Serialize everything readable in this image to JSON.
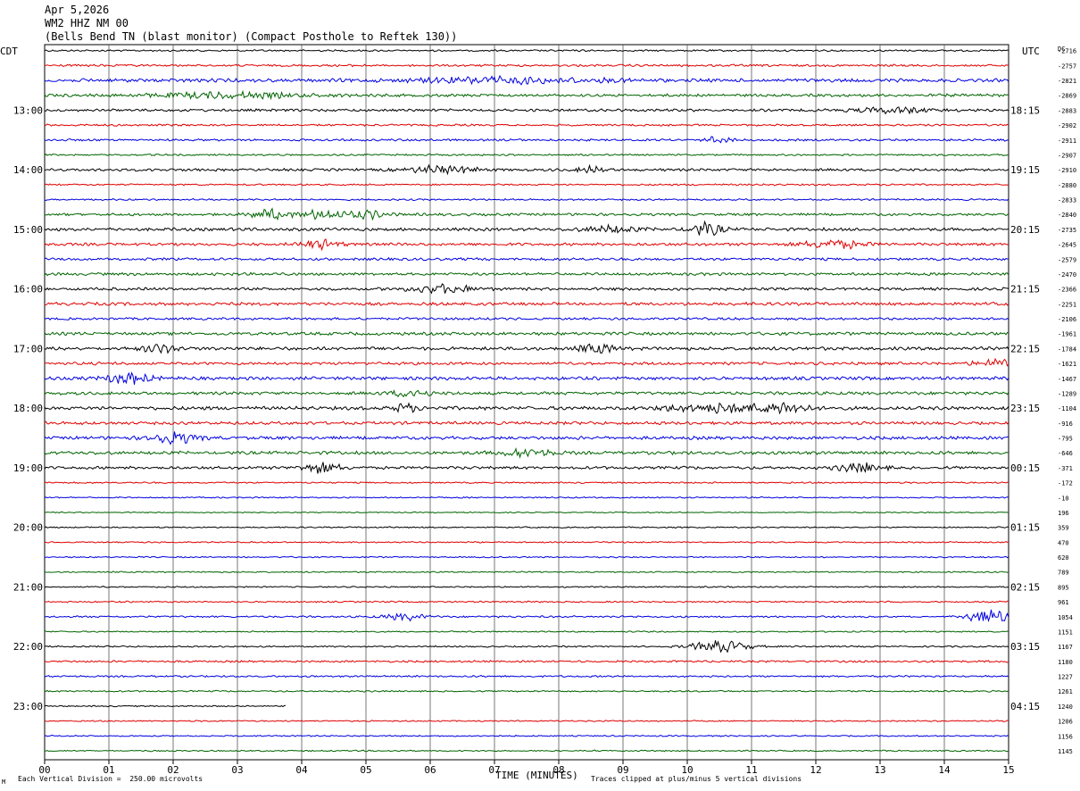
{
  "header": {
    "date": "Apr 5,2026",
    "channel": "WM2 HHZ NM 00",
    "station": "(Bells Bend TN (blast monitor) (Compact Posthole to Reftek 130))"
  },
  "chart_data": {
    "type": "line",
    "title": "",
    "left_axis_label": "CDT",
    "right_axis_label": "UTC",
    "dc_label": "DC",
    "xlabel": "TIME (MINUTES)",
    "x_ticks": [
      "00",
      "01",
      "02",
      "03",
      "04",
      "05",
      "06",
      "07",
      "08",
      "09",
      "10",
      "11",
      "12",
      "13",
      "14",
      "15"
    ],
    "xlim": [
      0,
      15
    ],
    "left_time_labels": [
      "13:00",
      "14:00",
      "15:00",
      "16:00",
      "17:00",
      "18:00",
      "19:00",
      "20:00",
      "21:00",
      "22:00",
      "23:00"
    ],
    "right_time_labels": [
      "18:15",
      "19:15",
      "20:15",
      "21:15",
      "22:15",
      "23:15",
      "00:15",
      "01:15",
      "02:15",
      "03:15",
      "04:15"
    ],
    "dc_offsets": [
      "-2716",
      "-2757",
      "-2821",
      "-2869",
      "-2883",
      "-2902",
      "-2911",
      "-2907",
      "-2910",
      "-2880",
      "-2833",
      "-2840",
      "-2735",
      "-2645",
      "-2579",
      "-2470",
      "-2366",
      "-2251",
      "-2106",
      "-1961",
      "-1784",
      "-1621",
      "-1467",
      "-1289",
      "-1104",
      "-916",
      "-795",
      "-646",
      "-371",
      "-172",
      "-10",
      "196",
      "359",
      "470",
      "620",
      "789",
      "895",
      "961",
      "1054",
      "1151",
      "1167",
      "1180",
      "1227",
      "1261",
      "1240",
      "1206",
      "1156",
      "1145"
    ],
    "trace_colors": [
      "#000000",
      "#e00000",
      "#0000e0",
      "#006400"
    ],
    "trace_count": 48,
    "last_trace_end_minute": 3.75,
    "amplitude": [
      0.8,
      1.0,
      1.6,
      1.3,
      1.2,
      0.9,
      1.0,
      0.8,
      1.2,
      0.8,
      0.8,
      1.2,
      1.4,
      1.3,
      1.2,
      1.3,
      1.3,
      1.4,
      1.1,
      1.4,
      1.5,
      1.3,
      1.5,
      1.4,
      1.6,
      1.4,
      1.5,
      1.5,
      1.3,
      0.7,
      0.6,
      0.5,
      0.6,
      0.6,
      0.6,
      0.6,
      0.6,
      0.7,
      0.8,
      0.6,
      0.7,
      0.9,
      0.8,
      0.7,
      0.6,
      0.6,
      0.6,
      0.6
    ],
    "events": [
      {
        "trace": 2,
        "minute": 7.3,
        "amp": 2.5,
        "width": 1.4
      },
      {
        "trace": 3,
        "minute": 2.9,
        "amp": 2.2,
        "width": 1.2
      },
      {
        "trace": 4,
        "minute": 13.2,
        "amp": 2.2,
        "width": 0.6
      },
      {
        "trace": 6,
        "minute": 10.5,
        "amp": 3.0,
        "width": 0.2
      },
      {
        "trace": 8,
        "minute": 6.2,
        "amp": 3.5,
        "width": 0.5
      },
      {
        "trace": 8,
        "minute": 8.5,
        "amp": 3.0,
        "width": 0.2
      },
      {
        "trace": 11,
        "minute": 3.5,
        "amp": 4.0,
        "width": 0.3
      },
      {
        "trace": 11,
        "minute": 4.3,
        "amp": 4.0,
        "width": 0.3
      },
      {
        "trace": 11,
        "minute": 5.0,
        "amp": 3.5,
        "width": 0.3
      },
      {
        "trace": 12,
        "minute": 10.3,
        "amp": 6.0,
        "width": 0.25
      },
      {
        "trace": 12,
        "minute": 8.8,
        "amp": 3.0,
        "width": 0.4
      },
      {
        "trace": 13,
        "minute": 4.3,
        "amp": 3.5,
        "width": 0.3
      },
      {
        "trace": 13,
        "minute": 12.3,
        "amp": 3.5,
        "width": 0.5
      },
      {
        "trace": 16,
        "minute": 6.2,
        "amp": 3.5,
        "width": 0.5
      },
      {
        "trace": 20,
        "minute": 1.8,
        "amp": 3.0,
        "width": 0.3
      },
      {
        "trace": 20,
        "minute": 8.6,
        "amp": 3.5,
        "width": 0.3
      },
      {
        "trace": 21,
        "minute": 14.8,
        "amp": 3.5,
        "width": 0.3
      },
      {
        "trace": 22,
        "minute": 1.3,
        "amp": 4.5,
        "width": 0.35
      },
      {
        "trace": 23,
        "minute": 5.7,
        "amp": 3.0,
        "width": 0.3
      },
      {
        "trace": 24,
        "minute": 11.4,
        "amp": 6.0,
        "width": 0.35
      },
      {
        "trace": 24,
        "minute": 5.6,
        "amp": 3.5,
        "width": 0.2
      },
      {
        "trace": 24,
        "minute": 10.5,
        "amp": 3.5,
        "width": 0.8
      },
      {
        "trace": 26,
        "minute": 2.0,
        "amp": 5.5,
        "width": 0.35
      },
      {
        "trace": 27,
        "minute": 7.5,
        "amp": 3.0,
        "width": 0.4
      },
      {
        "trace": 28,
        "minute": 4.3,
        "amp": 4.5,
        "width": 0.3
      },
      {
        "trace": 28,
        "minute": 12.7,
        "amp": 4.0,
        "width": 0.35
      },
      {
        "trace": 38,
        "minute": 5.6,
        "amp": 3.0,
        "width": 0.3
      },
      {
        "trace": 38,
        "minute": 14.7,
        "amp": 7.0,
        "width": 0.3
      },
      {
        "trace": 40,
        "minute": 10.5,
        "amp": 5.0,
        "width": 0.45
      }
    ]
  },
  "footer": {
    "scale_note": "Each Vertical Division =  250.00 microvolts",
    "clip_note": "Traces clipped at plus/minus 5 vertical divisions",
    "mark": "M"
  }
}
